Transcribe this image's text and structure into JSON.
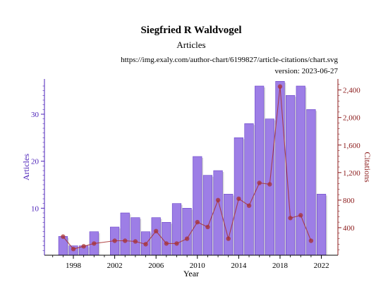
{
  "header": {
    "title": "Siegfried R Waldvogel",
    "subtitle": "Articles",
    "source_url": "https://img.exaly.com/author-chart/6199827/article-citations/chart.svg",
    "version": "version: 2023-06-27"
  },
  "colors": {
    "bars": "#9d7ee6",
    "bars_dark": "#6a45c9",
    "articles_axis": "#4b21b8",
    "citations": "#a83232",
    "citations_axis": "#8b1a1a",
    "x_axis": "#000000"
  },
  "chart_data": {
    "type": "bar",
    "title": "Siegfried R Waldvogel",
    "subtitle": "Articles",
    "xlabel": "Year",
    "ylabel_left": "Articles",
    "ylabel_right": "Citations",
    "x_tick_labels": [
      "1998",
      "2002",
      "2006",
      "2010",
      "2014",
      "2018",
      "2022"
    ],
    "y_left_ticks": [
      10,
      20,
      30
    ],
    "y_right_tick_labels": [
      "400",
      "800",
      "1,200",
      "1,600",
      "2,000",
      "2,400"
    ],
    "y_right_ticks": [
      400,
      800,
      1200,
      1600,
      2000,
      2400
    ],
    "ylim_left": [
      0,
      37.5
    ],
    "ylim_right": [
      0,
      2560
    ],
    "xlim": [
      1995.2,
      1023.6
    ],
    "grid": false,
    "legend": "none",
    "categories": [
      1997,
      1998,
      1999,
      2000,
      2001,
      2002,
      2003,
      2004,
      2005,
      2006,
      2007,
      2008,
      2009,
      2010,
      2011,
      2012,
      2013,
      2014,
      2015,
      2016,
      2017,
      2018,
      2019,
      2020,
      2021,
      2022
    ],
    "series": [
      {
        "type": "bar",
        "axis": "left",
        "values": [
          4,
          2,
          2,
          5,
          0,
          6,
          9,
          8,
          5,
          8,
          7,
          11,
          10,
          21,
          17,
          18,
          13,
          25,
          28,
          36,
          29,
          37,
          34,
          36,
          31,
          13
        ]
      },
      {
        "type": "line",
        "axis": "right",
        "values": [
          270,
          90,
          130,
          170,
          null,
          210,
          210,
          200,
          160,
          350,
          170,
          170,
          240,
          480,
          410,
          800,
          240,
          820,
          720,
          1050,
          1030,
          2450,
          540,
          580,
          210,
          null
        ]
      }
    ]
  }
}
